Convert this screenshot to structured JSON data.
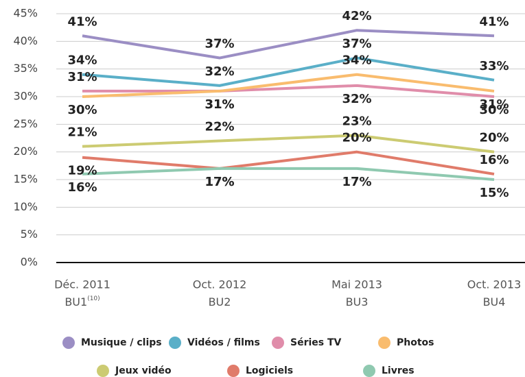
{
  "chart_data": {
    "type": "line",
    "categories": [
      "Déc. 2011",
      "Oct. 2012",
      "Mai 2013",
      "Oct. 2013"
    ],
    "category_codes": [
      "BU1",
      "BU2",
      "BU3",
      "BU4"
    ],
    "category_code_notes": [
      "(10)",
      null,
      null,
      null
    ],
    "ylim": [
      0,
      45
    ],
    "yticks": [
      {
        "value": 0,
        "label": "0%"
      },
      {
        "value": 5,
        "label": "5%"
      },
      {
        "value": 10,
        "label": "10%"
      },
      {
        "value": 15,
        "label": "15%"
      },
      {
        "value": 20,
        "label": "20%"
      },
      {
        "value": 25,
        "label": "25%"
      },
      {
        "value": 30,
        "label": "30%"
      },
      {
        "value": 35,
        "label": "35%"
      },
      {
        "value": 40,
        "label": "40%"
      },
      {
        "value": 45,
        "label": "45%"
      }
    ],
    "grid": true,
    "legend": "bottom",
    "series": [
      {
        "name": "Musique / clips",
        "color": "#9b8ec4",
        "values": [
          41,
          37,
          42,
          41
        ],
        "value_labels": [
          "41%",
          "37%",
          "42%",
          "41%"
        ]
      },
      {
        "name": "Vidéos / films",
        "color": "#5aafc8",
        "values": [
          34,
          32,
          37,
          33
        ],
        "value_labels": [
          "34%",
          "32%",
          "37%",
          "33%"
        ]
      },
      {
        "name": "Séries TV",
        "color": "#e08daa",
        "values": [
          31,
          31,
          32,
          30
        ],
        "value_labels": [
          "31%",
          "31%",
          "32%",
          "30%"
        ]
      },
      {
        "name": "Photos",
        "color": "#f9bc6e",
        "values": [
          30,
          31,
          34,
          31
        ],
        "value_labels": [
          "30%",
          "31%",
          "34%",
          "31%"
        ]
      },
      {
        "name": "Jeux vidéo",
        "color": "#cccb72",
        "values": [
          21,
          22,
          23,
          20
        ],
        "value_labels": [
          "21%",
          "22%",
          "23%",
          "20%"
        ]
      },
      {
        "name": "Logiciels",
        "color": "#e07b6a",
        "values": [
          19,
          17,
          20,
          16
        ],
        "value_labels": [
          "19%",
          "17%",
          "20%",
          "16%"
        ]
      },
      {
        "name": "Livres",
        "color": "#8fc9b0",
        "values": [
          16,
          17,
          17,
          15
        ],
        "value_labels": [
          "16%",
          "17%",
          "17%",
          "15%"
        ]
      }
    ]
  }
}
